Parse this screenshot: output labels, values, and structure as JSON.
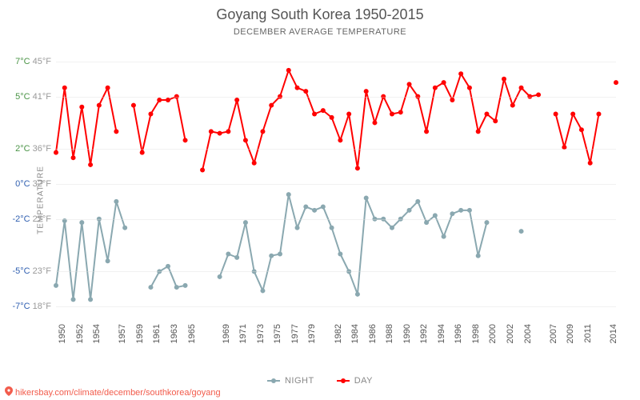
{
  "title": "Goyang South Korea 1950-2015",
  "subtitle": "DECEMBER AVERAGE TEMPERATURE",
  "ylabel": "TEMPERATURE",
  "attribution": "hikersbay.com/climate/december/southkorea/goyang",
  "colors": {
    "day": "#ff0000",
    "night": "#8aa8b0",
    "grid": "#dddddd",
    "background": "#ffffff",
    "title": "#555555",
    "subtitle": "#666666",
    "ylabel": "#888888",
    "attribution": "#f25c4c"
  },
  "chart": {
    "type": "line",
    "y_domain_c": [
      -8,
      8
    ],
    "yticks": [
      {
        "c": -7,
        "f": 18,
        "label_c": "-7°C",
        "label_f": "18°F",
        "color": "#2f5fb0"
      },
      {
        "c": -5,
        "f": 23,
        "label_c": "-5°C",
        "label_f": "23°F",
        "color": "#2f5fb0"
      },
      {
        "c": -2,
        "f": 27,
        "label_c": "-2°C",
        "label_f": "27°F",
        "color": "#2f5fb0"
      },
      {
        "c": 0,
        "f": 32,
        "label_c": "0°C",
        "label_f": "32°F",
        "color": "#2f5fb0"
      },
      {
        "c": 2,
        "f": 36,
        "label_c": "2°C",
        "label_f": "36°F",
        "color": "#4a9446"
      },
      {
        "c": 5,
        "f": 41,
        "label_c": "5°C",
        "label_f": "41°F",
        "color": "#4a9446"
      },
      {
        "c": 7,
        "f": 45,
        "label_c": "7°C",
        "label_f": "45°F",
        "color": "#4a9446"
      }
    ],
    "xticks": [
      1950,
      1952,
      1954,
      1957,
      1959,
      1961,
      1963,
      1965,
      1969,
      1971,
      1973,
      1975,
      1977,
      1979,
      1982,
      1984,
      1986,
      1988,
      1990,
      1992,
      1994,
      1996,
      1998,
      2000,
      2002,
      2004,
      2007,
      2009,
      2011,
      2014
    ],
    "x_domain": [
      1950,
      2015
    ],
    "line_width": 2,
    "marker_radius": 3,
    "series": {
      "night": {
        "label": "NIGHT",
        "color": "#8aa8b0",
        "points": [
          [
            1950,
            -5.8
          ],
          [
            1951,
            -2.1
          ],
          [
            1952,
            -6.6
          ],
          [
            1953,
            -2.2
          ],
          [
            1954,
            -6.6
          ],
          [
            1955,
            -2.0
          ],
          [
            1956,
            -4.4
          ],
          [
            1957,
            -1.0
          ],
          [
            1958,
            -2.5
          ],
          [
            1961,
            -5.9
          ],
          [
            1962,
            -5.0
          ],
          [
            1963,
            -4.7
          ],
          [
            1964,
            -5.9
          ],
          [
            1965,
            -5.8
          ],
          [
            1969,
            -5.3
          ],
          [
            1970,
            -4.0
          ],
          [
            1971,
            -4.2
          ],
          [
            1972,
            -2.2
          ],
          [
            1973,
            -5.0
          ],
          [
            1974,
            -6.1
          ],
          [
            1975,
            -4.1
          ],
          [
            1976,
            -4.0
          ],
          [
            1977,
            -0.6
          ],
          [
            1978,
            -2.5
          ],
          [
            1979,
            -1.3
          ],
          [
            1980,
            -1.5
          ],
          [
            1981,
            -1.3
          ],
          [
            1982,
            -2.5
          ],
          [
            1983,
            -4.0
          ],
          [
            1984,
            -5.0
          ],
          [
            1985,
            -6.3
          ],
          [
            1986,
            -0.8
          ],
          [
            1987,
            -2.0
          ],
          [
            1988,
            -2.0
          ],
          [
            1989,
            -2.5
          ],
          [
            1990,
            -2.0
          ],
          [
            1991,
            -1.5
          ],
          [
            1992,
            -1.0
          ],
          [
            1993,
            -2.2
          ],
          [
            1994,
            -1.8
          ],
          [
            1995,
            -3.0
          ],
          [
            1996,
            -1.7
          ],
          [
            1997,
            -1.5
          ],
          [
            1998,
            -1.5
          ],
          [
            1999,
            -4.1
          ],
          [
            2000,
            -2.2
          ],
          [
            2004,
            -2.7
          ]
        ]
      },
      "day": {
        "label": "DAY",
        "color": "#ff0000",
        "points": [
          [
            1950,
            1.8
          ],
          [
            1951,
            5.5
          ],
          [
            1952,
            1.5
          ],
          [
            1953,
            4.4
          ],
          [
            1954,
            1.1
          ],
          [
            1955,
            4.5
          ],
          [
            1956,
            5.5
          ],
          [
            1957,
            3.0
          ],
          [
            1959,
            4.5
          ],
          [
            1960,
            1.8
          ],
          [
            1961,
            4.0
          ],
          [
            1962,
            4.8
          ],
          [
            1963,
            4.8
          ],
          [
            1964,
            5.0
          ],
          [
            1965,
            2.5
          ],
          [
            1967,
            0.8
          ],
          [
            1968,
            3.0
          ],
          [
            1969,
            2.9
          ],
          [
            1970,
            3.0
          ],
          [
            1971,
            4.8
          ],
          [
            1972,
            2.5
          ],
          [
            1973,
            1.2
          ],
          [
            1974,
            3.0
          ],
          [
            1975,
            4.5
          ],
          [
            1976,
            5.0
          ],
          [
            1977,
            6.5
          ],
          [
            1978,
            5.5
          ],
          [
            1979,
            5.3
          ],
          [
            1980,
            4.0
          ],
          [
            1981,
            4.2
          ],
          [
            1982,
            3.8
          ],
          [
            1983,
            2.5
          ],
          [
            1984,
            4.0
          ],
          [
            1985,
            0.9
          ],
          [
            1986,
            5.3
          ],
          [
            1987,
            3.5
          ],
          [
            1988,
            5.0
          ],
          [
            1989,
            4.0
          ],
          [
            1990,
            4.1
          ],
          [
            1991,
            5.7
          ],
          [
            1992,
            5.0
          ],
          [
            1993,
            3.0
          ],
          [
            1994,
            5.5
          ],
          [
            1995,
            5.8
          ],
          [
            1996,
            4.8
          ],
          [
            1997,
            6.3
          ],
          [
            1998,
            5.5
          ],
          [
            1999,
            3.0
          ],
          [
            2000,
            4.0
          ],
          [
            2001,
            3.6
          ],
          [
            2002,
            6.0
          ],
          [
            2003,
            4.5
          ],
          [
            2004,
            5.5
          ],
          [
            2005,
            5.0
          ],
          [
            2006,
            5.1
          ],
          [
            2008,
            4.0
          ],
          [
            2009,
            2.1
          ],
          [
            2010,
            4.0
          ],
          [
            2011,
            3.1
          ],
          [
            2012,
            1.2
          ],
          [
            2013,
            4.0
          ],
          [
            2015,
            5.8
          ]
        ]
      }
    }
  },
  "legend": [
    {
      "key": "night",
      "label": "NIGHT"
    },
    {
      "key": "day",
      "label": "DAY"
    }
  ]
}
